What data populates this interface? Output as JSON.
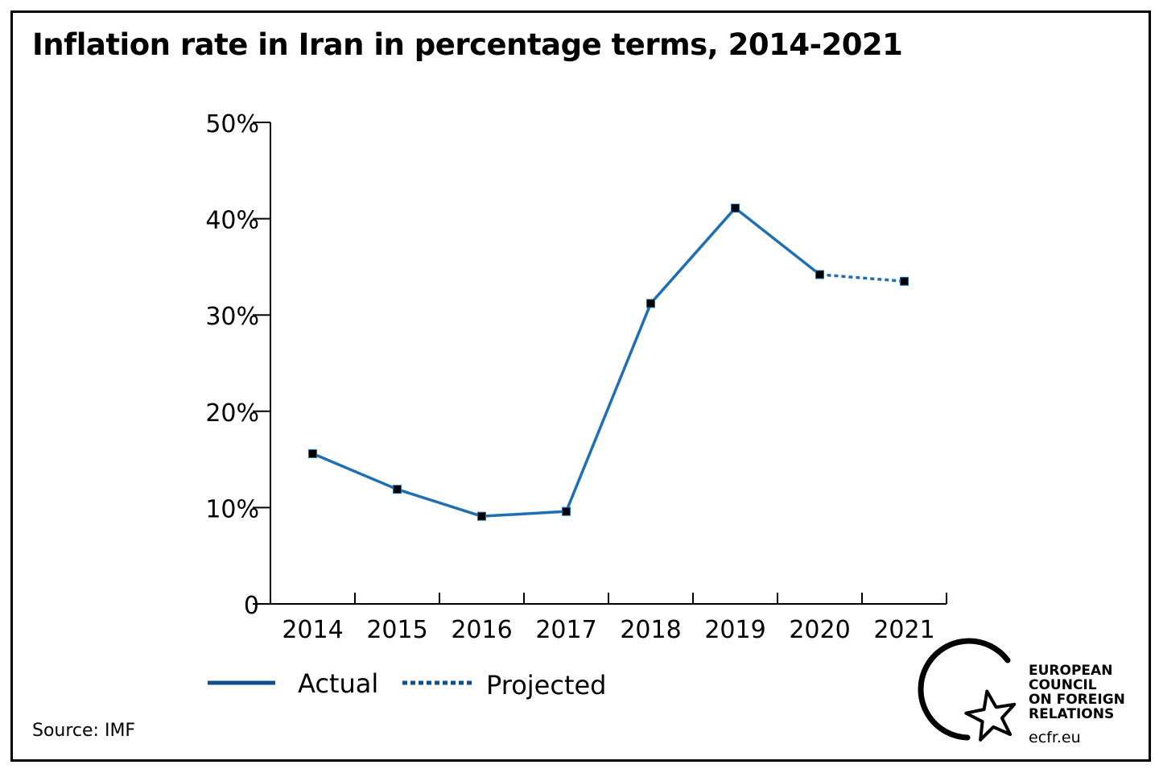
{
  "title": "Inflation rate in Iran in percentage terms, 2014-2021",
  "source": "Source: IMF",
  "colors": {
    "line": "#1f6fb2",
    "marker": "#000000",
    "legend_line": "#0f4f8c"
  },
  "logo": {
    "icon": "star-in-circle-icon",
    "lines": [
      "EUROPEAN",
      "COUNCIL",
      "ON FOREIGN",
      "RELATIONS"
    ],
    "url": "ecfr.eu"
  },
  "chart_data": {
    "type": "line",
    "title": "Inflation rate in Iran in percentage terms, 2014-2021",
    "xlabel": "",
    "ylabel": "",
    "categories": [
      "2014",
      "2015",
      "2016",
      "2017",
      "2018",
      "2019",
      "2020",
      "2021"
    ],
    "ylim": [
      0,
      50
    ],
    "yticks": [
      0,
      10,
      20,
      30,
      40,
      50
    ],
    "ytick_labels": [
      "0",
      "10%",
      "20%",
      "30%",
      "40%",
      "50%"
    ],
    "grid": false,
    "legend_position": "bottom-left",
    "series": [
      {
        "name": "Actual",
        "style": "solid",
        "x": [
          "2014",
          "2015",
          "2016",
          "2017",
          "2018",
          "2019",
          "2020"
        ],
        "values": [
          15.6,
          11.9,
          9.1,
          9.6,
          31.2,
          41.1,
          34.2
        ]
      },
      {
        "name": "Projected",
        "style": "dashed",
        "x": [
          "2020",
          "2021"
        ],
        "values": [
          34.2,
          33.5
        ]
      }
    ]
  }
}
